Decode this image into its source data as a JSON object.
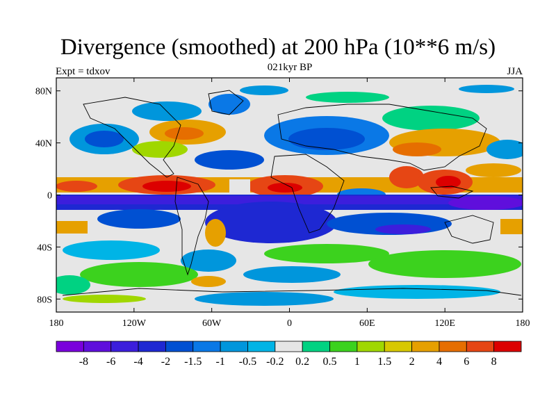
{
  "title": "Divergence (smoothed) at 200 hPa (10**6 m/s)",
  "subtitle": "021kyr BP",
  "left_label": "Expt = tdxov",
  "right_label": "JJA",
  "map": {
    "lat_ticks": [
      {
        "value": 80,
        "label": "80N"
      },
      {
        "value": 40,
        "label": "40N"
      },
      {
        "value": 0,
        "label": "0"
      },
      {
        "value": -40,
        "label": "40S"
      },
      {
        "value": -80,
        "label": "80S"
      }
    ],
    "lon_ticks": [
      {
        "value": -180,
        "label": "180"
      },
      {
        "value": -120,
        "label": "120W"
      },
      {
        "value": -60,
        "label": "60W"
      },
      {
        "value": 0,
        "label": "0"
      },
      {
        "value": 60,
        "label": "60E"
      },
      {
        "value": 120,
        "label": "120E"
      },
      {
        "value": 180,
        "label": "180"
      }
    ],
    "lon_range": [
      -180,
      180
    ],
    "lat_range": [
      -90,
      90
    ],
    "background_color": "#e6e6e6"
  },
  "colorbar": {
    "colors": [
      "#7a00dc",
      "#5f0fdc",
      "#3c1edc",
      "#1e28d2",
      "#0050d2",
      "#0a78e6",
      "#0096dc",
      "#00b4e6",
      "#e6e6e6",
      "#00d282",
      "#3cd21e",
      "#a0d700",
      "#d7c800",
      "#e6a000",
      "#e66e00",
      "#e64614",
      "#dc0000"
    ],
    "labels": [
      "-8",
      "-6",
      "-4",
      "-2",
      "-1.5",
      "-1",
      "-0.5",
      "-0.2",
      "0.2",
      "0.5",
      "1",
      "1.5",
      "2",
      "4",
      "6",
      "8"
    ]
  }
}
